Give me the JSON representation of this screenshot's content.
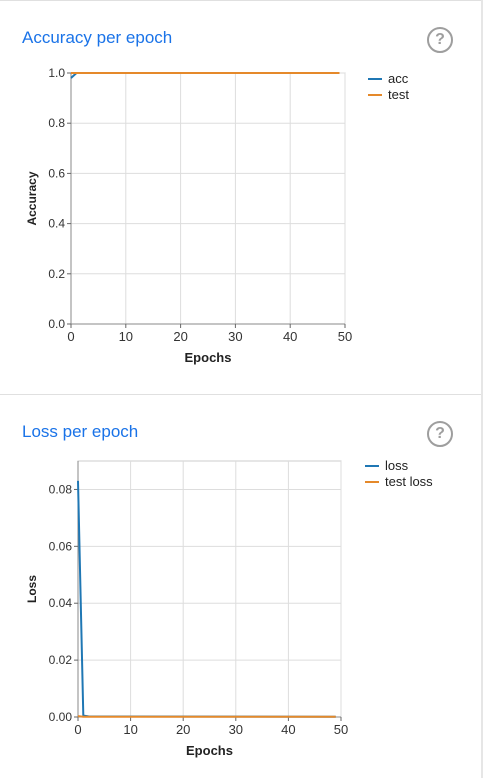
{
  "panels": [
    {
      "title": "Accuracy per epoch",
      "help_icon": "question-circle-icon",
      "help_glyph": "?"
    },
    {
      "title": "Loss per epoch",
      "help_icon": "question-circle-icon",
      "help_glyph": "?"
    }
  ],
  "chart_data": [
    {
      "type": "line",
      "xlabel": "Epochs",
      "ylabel": "Accuracy",
      "xlim": [
        0,
        50
      ],
      "ylim": [
        0,
        1
      ],
      "xticks": [
        0,
        10,
        20,
        30,
        40,
        50
      ],
      "xtick_labels": [
        "0",
        "10",
        "20",
        "30",
        "40",
        "50"
      ],
      "yticks": [
        0,
        0.2,
        0.4,
        0.6,
        0.8,
        1
      ],
      "ytick_labels": [
        "0.0",
        "0.2",
        "0.4",
        "0.6",
        "0.8",
        "1.0"
      ],
      "grid": true,
      "legend_position": "top-right",
      "series": [
        {
          "name": "acc",
          "color": "#1f77b4",
          "x": [
            0,
            1,
            2,
            49
          ],
          "y": [
            0.98,
            1.0,
            1.0,
            1.0
          ]
        },
        {
          "name": "test",
          "color": "#e5892a",
          "x": [
            0,
            1,
            2,
            49
          ],
          "y": [
            1.0,
            1.0,
            1.0,
            1.0
          ]
        }
      ]
    },
    {
      "type": "line",
      "xlabel": "Epochs",
      "ylabel": "Loss",
      "xlim": [
        0,
        50
      ],
      "ylim": [
        0,
        0.09
      ],
      "xticks": [
        0,
        10,
        20,
        30,
        40,
        50
      ],
      "xtick_labels": [
        "0",
        "10",
        "20",
        "30",
        "40",
        "50"
      ],
      "yticks": [
        0,
        0.02,
        0.04,
        0.06,
        0.08
      ],
      "ytick_labels": [
        "0.00",
        "0.02",
        "0.04",
        "0.06",
        "0.08"
      ],
      "grid": true,
      "legend_position": "top-right",
      "series": [
        {
          "name": "loss",
          "color": "#1f77b4",
          "x": [
            0,
            1,
            2,
            49
          ],
          "y": [
            0.083,
            0.0005,
            0.0002,
            0.0001
          ]
        },
        {
          "name": "test loss",
          "color": "#e5892a",
          "x": [
            0,
            1,
            2,
            49
          ],
          "y": [
            0.0003,
            0.0001,
            0.0001,
            0.0001
          ]
        }
      ]
    }
  ]
}
